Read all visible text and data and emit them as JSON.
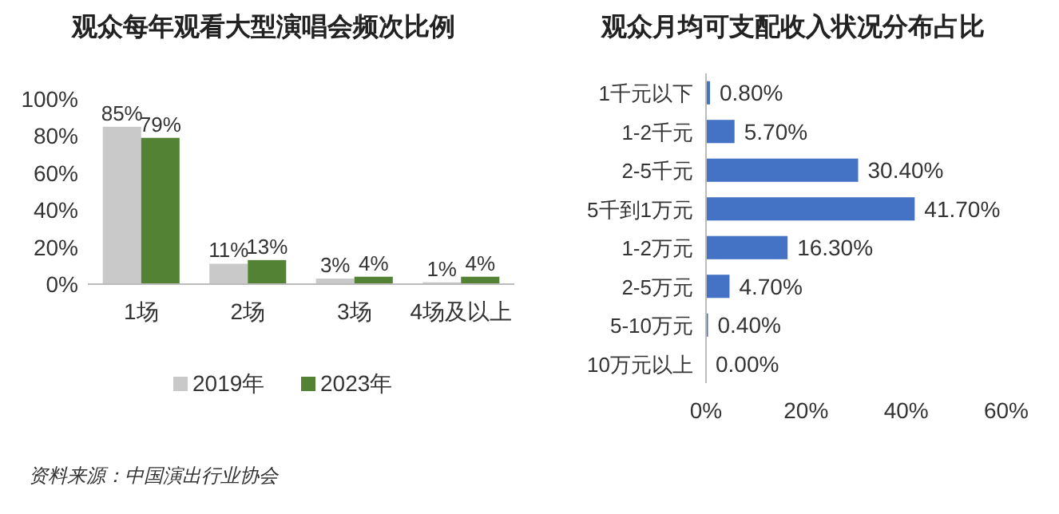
{
  "chart_data": [
    {
      "type": "bar",
      "title": "观众每年观看大型演唱会频次比例",
      "categories": [
        "1场",
        "2场",
        "3场",
        "4场及以上"
      ],
      "series": [
        {
          "name": "2019年",
          "color": "#c9c9c9",
          "values": [
            85,
            11,
            3,
            1
          ],
          "value_labels": [
            "85%",
            "11%",
            "3%",
            "1%"
          ]
        },
        {
          "name": "2023年",
          "color": "#548235",
          "values": [
            79,
            13,
            4,
            4
          ],
          "value_labels": [
            "79%",
            "13%",
            "4%",
            "4%"
          ]
        }
      ],
      "ylim": [
        0,
        100
      ],
      "yticks": [
        {
          "value": 0,
          "label": "0%"
        },
        {
          "value": 20,
          "label": "20%"
        },
        {
          "value": 40,
          "label": "40%"
        },
        {
          "value": 60,
          "label": "60%"
        },
        {
          "value": 80,
          "label": "80%"
        },
        {
          "value": 100,
          "label": "100%"
        }
      ],
      "grid": false,
      "legend": "bottom",
      "annotations": [
        "资料来源：中国演出行业协会"
      ]
    },
    {
      "type": "bar",
      "title": "观众月均可支配收入状况分布占比",
      "orientation": "horizontal",
      "categories": [
        "1千元以下",
        "1-2千元",
        "2-5千元",
        "5千到1万元",
        "1-2万元",
        "2-5万元",
        "5-10万元",
        "10万元以上"
      ],
      "series": [
        {
          "color": "#4472c4",
          "values": [
            0.8,
            5.7,
            30.4,
            41.7,
            16.3,
            4.7,
            0.4,
            0.0
          ],
          "value_labels": [
            "0.80%",
            "5.70%",
            "30.40%",
            "41.70%",
            "16.30%",
            "4.70%",
            "0.40%",
            "0.00%"
          ]
        }
      ],
      "xlim": [
        0,
        60
      ],
      "xticks": [
        {
          "value": 0,
          "label": "0%"
        },
        {
          "value": 20,
          "label": "20%"
        },
        {
          "value": 40,
          "label": "40%"
        },
        {
          "value": 60,
          "label": "60%"
        }
      ],
      "grid": false
    }
  ]
}
